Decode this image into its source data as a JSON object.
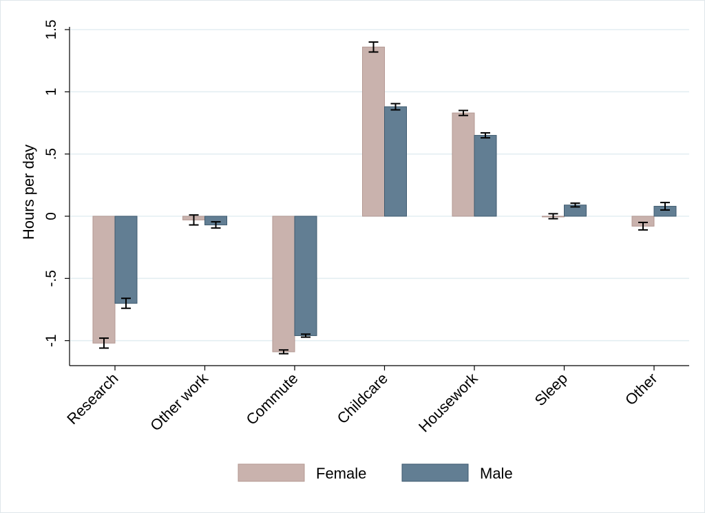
{
  "chart_data": {
    "type": "bar",
    "title": "",
    "xlabel": "",
    "ylabel": "Hours per day",
    "ylim": [
      -1.2,
      1.5
    ],
    "yticks": [
      {
        "value": 1.5,
        "label": "1.5"
      },
      {
        "value": 1,
        "label": "1"
      },
      {
        "value": 0.5,
        "label": ".5"
      },
      {
        "value": 0,
        "label": "0"
      },
      {
        "value": -0.5,
        "label": "-.5"
      },
      {
        "value": -1,
        "label": "-1"
      }
    ],
    "grid": true,
    "legend_position": "bottom",
    "categories": [
      "Research",
      "Other work",
      "Commute",
      "Childcare",
      "Housework",
      "Sleep",
      "Other"
    ],
    "series": [
      {
        "name": "Female",
        "color": "#c9b2ad",
        "edge_color": "#b49892",
        "values": [
          -1.02,
          -0.03,
          -1.09,
          1.36,
          0.83,
          0.0,
          -0.08
        ],
        "error": [
          0.04,
          0.04,
          0.015,
          0.04,
          0.02,
          0.02,
          0.03
        ]
      },
      {
        "name": "Male",
        "color": "#627e93",
        "edge_color": "#3e5a6f",
        "values": [
          -0.7,
          -0.07,
          -0.96,
          0.88,
          0.65,
          0.09,
          0.08
        ],
        "error": [
          0.04,
          0.025,
          0.012,
          0.025,
          0.02,
          0.015,
          0.03
        ]
      }
    ]
  }
}
